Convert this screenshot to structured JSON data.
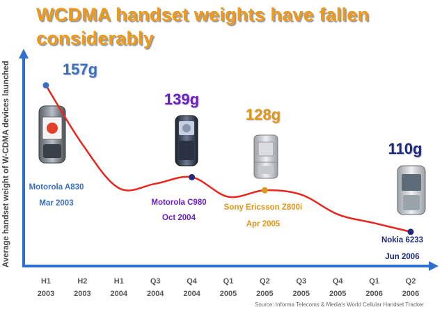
{
  "chart_data": {
    "type": "line",
    "title": "WCDMA handset weights have fallen considerably",
    "ylabel": "Average handset weight of W-CDMA devices launched",
    "xlabel": "",
    "categories": [
      {
        "period": "H1",
        "year": "2003"
      },
      {
        "period": "H2",
        "year": "2003"
      },
      {
        "period": "H1",
        "year": "2004"
      },
      {
        "period": "Q3",
        "year": "2004"
      },
      {
        "period": "Q4",
        "year": "2004"
      },
      {
        "period": "Q1",
        "year": "2005"
      },
      {
        "period": "Q2",
        "year": "2005"
      },
      {
        "period": "Q3",
        "year": "2005"
      },
      {
        "period": "Q4",
        "year": "2005"
      },
      {
        "period": "Q1",
        "year": "2006"
      },
      {
        "period": "Q2",
        "year": "2006"
      }
    ],
    "series": [
      {
        "name": "",
        "color": "#e8261e",
        "values": [
          157,
          130,
          110,
          112,
          115,
          106,
          109,
          107,
          98,
          94,
          90
        ]
      }
    ],
    "ylim": [
      75,
      175
    ],
    "grid": false,
    "legend": "none",
    "annotations": [
      {
        "index": 0,
        "weight": "157g",
        "device": "Motorola A830",
        "date": "Mar 2003",
        "color": "#3a6fc4",
        "marker": "#3a6fc4"
      },
      {
        "index": 4,
        "weight": "139g",
        "device": "Motorola C980",
        "date": "Oct 2004",
        "color": "#6a1fc4",
        "marker": "#1f2a7a"
      },
      {
        "index": 6,
        "weight": "128g",
        "device": "Sony Ericsson Z800i",
        "date": "Apr 2005",
        "color": "#e0961a",
        "marker": "#e0961a"
      },
      {
        "index": 10,
        "weight": "110g",
        "device": "Nokia 6233",
        "date": "Jun 2006",
        "color": "#1f2a7a",
        "marker": "#1f2a7a"
      }
    ]
  },
  "source": "Source: Informa Telecoms & Media's World Cellular Handset Tracker"
}
